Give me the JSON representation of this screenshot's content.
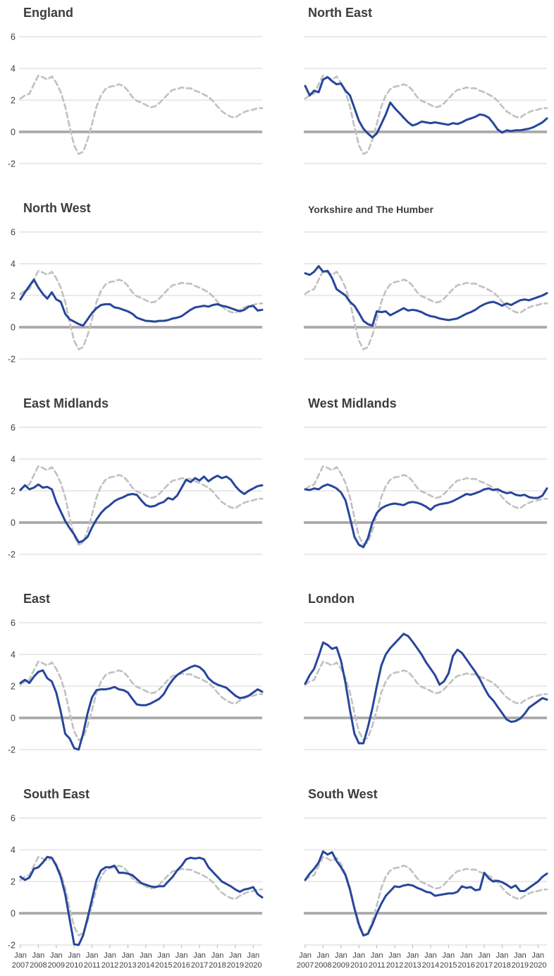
{
  "chart_data": {
    "type": "line",
    "layout": "small multiples, 2 columns x 5 rows, no legend, gridlines on, heavy zero line",
    "x": {
      "start": "Jan 2007",
      "end": "Jul 2020",
      "step_months": 3,
      "points": 55
    },
    "x_axis": {
      "tick_month": "Jan",
      "tick_years": [
        "2007",
        "2008",
        "2009",
        "2010",
        "2011",
        "2012",
        "2013",
        "2014",
        "2015",
        "2016",
        "2017",
        "2018",
        "2019",
        "2020"
      ],
      "shown_on": "bottom row only"
    },
    "y_axis": {
      "ticks": [
        "6",
        "4",
        "2",
        "0",
        "-2"
      ],
      "range": [
        -2,
        6
      ],
      "shown_on": "left column only",
      "zero_line": true
    },
    "colors": {
      "region_line": "#27469b",
      "england_reference_line": "#c2c2c2",
      "gridline": "#d4d4d4",
      "zero_line": "#a9a9a9",
      "axis_tick": "#b3b3b3",
      "tick_text": "#3f3f3f",
      "title_text": "#3d3d3d"
    },
    "series": [
      {
        "name": "England",
        "role": "reference",
        "style": "dashed",
        "values": [
          2.1,
          2.3,
          2.4,
          3.0,
          3.55,
          3.45,
          3.3,
          3.5,
          3.1,
          2.5,
          1.6,
          0.3,
          -0.85,
          -1.4,
          -1.25,
          -0.5,
          0.5,
          1.6,
          2.3,
          2.7,
          2.85,
          2.9,
          3.0,
          2.9,
          2.6,
          2.2,
          1.95,
          1.85,
          1.7,
          1.55,
          1.6,
          1.8,
          2.1,
          2.4,
          2.65,
          2.7,
          2.8,
          2.75,
          2.75,
          2.6,
          2.5,
          2.35,
          2.2,
          1.95,
          1.6,
          1.3,
          1.1,
          0.95,
          0.9,
          1.1,
          1.25,
          1.35,
          1.4,
          1.5,
          1.5
        ]
      },
      {
        "name": "North East",
        "role": "region",
        "style": "solid",
        "values": [
          2.9,
          2.3,
          2.6,
          2.5,
          3.3,
          3.45,
          3.2,
          3.0,
          3.05,
          2.6,
          2.3,
          1.5,
          0.7,
          0.2,
          -0.1,
          -0.35,
          -0.1,
          0.5,
          1.1,
          1.85,
          1.5,
          1.2,
          0.9,
          0.6,
          0.4,
          0.5,
          0.65,
          0.6,
          0.55,
          0.6,
          0.55,
          0.5,
          0.45,
          0.55,
          0.5,
          0.6,
          0.75,
          0.85,
          0.95,
          1.1,
          1.05,
          0.9,
          0.55,
          0.15,
          -0.05,
          0.1,
          0.05,
          0.1,
          0.1,
          0.15,
          0.2,
          0.3,
          0.45,
          0.6,
          0.85
        ]
      },
      {
        "name": "North West",
        "role": "region",
        "style": "solid",
        "values": [
          1.75,
          2.2,
          2.6,
          3.0,
          2.5,
          2.1,
          1.8,
          2.2,
          1.75,
          1.6,
          0.85,
          0.5,
          0.35,
          0.2,
          0.1,
          0.5,
          0.9,
          1.2,
          1.4,
          1.45,
          1.45,
          1.25,
          1.2,
          1.1,
          1.0,
          0.85,
          0.6,
          0.5,
          0.4,
          0.38,
          0.35,
          0.4,
          0.4,
          0.45,
          0.55,
          0.6,
          0.7,
          0.9,
          1.1,
          1.25,
          1.3,
          1.35,
          1.3,
          1.4,
          1.45,
          1.35,
          1.3,
          1.2,
          1.1,
          1.0,
          1.1,
          1.3,
          1.35,
          1.05,
          1.1
        ]
      },
      {
        "name": "Yorkshire and The Humber",
        "role": "region",
        "style": "solid",
        "values": [
          3.4,
          3.3,
          3.5,
          3.85,
          3.5,
          3.55,
          3.1,
          2.4,
          2.2,
          2.0,
          1.6,
          1.35,
          0.9,
          0.4,
          0.2,
          0.1,
          1.0,
          0.95,
          1.0,
          0.75,
          0.9,
          1.05,
          1.2,
          1.05,
          1.1,
          1.05,
          0.95,
          0.8,
          0.7,
          0.65,
          0.55,
          0.5,
          0.45,
          0.5,
          0.55,
          0.7,
          0.85,
          0.95,
          1.1,
          1.3,
          1.45,
          1.55,
          1.6,
          1.5,
          1.35,
          1.5,
          1.4,
          1.55,
          1.7,
          1.75,
          1.7,
          1.8,
          1.9,
          2.0,
          2.15
        ]
      },
      {
        "name": "East Midlands",
        "role": "region",
        "style": "solid",
        "values": [
          2.05,
          2.35,
          2.1,
          2.2,
          2.4,
          2.2,
          2.25,
          2.1,
          1.3,
          0.7,
          0.1,
          -0.35,
          -0.75,
          -1.25,
          -1.15,
          -0.9,
          -0.3,
          0.2,
          0.6,
          0.9,
          1.1,
          1.35,
          1.5,
          1.6,
          1.75,
          1.8,
          1.75,
          1.4,
          1.1,
          1.0,
          1.05,
          1.2,
          1.3,
          1.55,
          1.45,
          1.7,
          2.2,
          2.7,
          2.55,
          2.8,
          2.65,
          2.9,
          2.6,
          2.8,
          2.95,
          2.8,
          2.9,
          2.7,
          2.3,
          2.0,
          1.8,
          2.0,
          2.15,
          2.3,
          2.35
        ]
      },
      {
        "name": "West Midlands",
        "role": "region",
        "style": "solid",
        "values": [
          2.1,
          2.05,
          2.15,
          2.1,
          2.3,
          2.4,
          2.3,
          2.15,
          1.9,
          1.4,
          0.3,
          -0.9,
          -1.4,
          -1.55,
          -1.0,
          0.0,
          0.6,
          0.9,
          1.05,
          1.15,
          1.2,
          1.15,
          1.1,
          1.25,
          1.3,
          1.25,
          1.15,
          1.0,
          0.8,
          1.05,
          1.15,
          1.2,
          1.25,
          1.35,
          1.5,
          1.65,
          1.8,
          1.75,
          1.85,
          1.95,
          2.1,
          2.15,
          2.05,
          2.1,
          1.95,
          1.85,
          1.9,
          1.75,
          1.7,
          1.75,
          1.6,
          1.55,
          1.55,
          1.7,
          2.15
        ]
      },
      {
        "name": "East",
        "role": "region",
        "style": "solid",
        "values": [
          2.2,
          2.4,
          2.2,
          2.6,
          2.9,
          3.0,
          2.5,
          2.3,
          1.6,
          0.4,
          -1.0,
          -1.3,
          -1.9,
          -2.0,
          -1.0,
          0.3,
          1.3,
          1.75,
          1.8,
          1.8,
          1.85,
          1.95,
          1.8,
          1.75,
          1.6,
          1.2,
          0.85,
          0.8,
          0.8,
          0.9,
          1.05,
          1.2,
          1.5,
          2.0,
          2.4,
          2.7,
          2.9,
          3.05,
          3.2,
          3.3,
          3.2,
          2.95,
          2.5,
          2.25,
          2.1,
          2.0,
          1.9,
          1.65,
          1.4,
          1.25,
          1.3,
          1.4,
          1.6,
          1.8,
          1.65
        ]
      },
      {
        "name": "London",
        "role": "region",
        "style": "solid",
        "values": [
          2.15,
          2.7,
          3.1,
          3.9,
          4.75,
          4.6,
          4.35,
          4.45,
          3.6,
          2.2,
          0.5,
          -1.0,
          -1.6,
          -1.6,
          -0.6,
          0.6,
          2.0,
          3.3,
          4.0,
          4.4,
          4.7,
          5.0,
          5.3,
          5.15,
          4.8,
          4.4,
          4.0,
          3.5,
          3.1,
          2.7,
          2.1,
          2.3,
          2.8,
          3.9,
          4.3,
          4.1,
          3.7,
          3.3,
          2.9,
          2.45,
          1.9,
          1.4,
          1.1,
          0.7,
          0.3,
          -0.1,
          -0.25,
          -0.2,
          -0.05,
          0.25,
          0.65,
          0.85,
          1.05,
          1.25,
          1.15
        ]
      },
      {
        "name": "South East",
        "role": "region",
        "style": "solid",
        "values": [
          2.3,
          2.1,
          2.25,
          2.8,
          2.9,
          3.2,
          3.55,
          3.5,
          3.0,
          2.3,
          1.2,
          -0.4,
          -1.95,
          -2.0,
          -1.4,
          -0.3,
          0.9,
          2.1,
          2.7,
          2.9,
          2.9,
          3.0,
          2.55,
          2.55,
          2.5,
          2.4,
          2.15,
          1.9,
          1.8,
          1.7,
          1.65,
          1.7,
          1.7,
          2.0,
          2.3,
          2.7,
          3.0,
          3.4,
          3.5,
          3.45,
          3.5,
          3.4,
          2.9,
          2.6,
          2.3,
          2.0,
          1.85,
          1.7,
          1.5,
          1.35,
          1.5,
          1.55,
          1.65,
          1.2,
          1.0
        ]
      },
      {
        "name": "South West",
        "role": "region",
        "style": "solid",
        "values": [
          2.1,
          2.5,
          2.8,
          3.2,
          3.9,
          3.7,
          3.85,
          3.3,
          2.9,
          2.4,
          1.5,
          0.3,
          -0.7,
          -1.4,
          -1.3,
          -0.7,
          0.0,
          0.6,
          1.1,
          1.4,
          1.7,
          1.65,
          1.75,
          1.8,
          1.75,
          1.6,
          1.5,
          1.35,
          1.3,
          1.1,
          1.15,
          1.2,
          1.25,
          1.25,
          1.35,
          1.7,
          1.6,
          1.65,
          1.45,
          1.5,
          2.55,
          2.2,
          2.0,
          2.05,
          1.95,
          1.8,
          1.6,
          1.75,
          1.4,
          1.4,
          1.6,
          1.8,
          2.0,
          2.3,
          2.5
        ]
      }
    ],
    "panels": [
      {
        "title": "England",
        "series": [
          "England"
        ]
      },
      {
        "title": "North East",
        "series": [
          "England",
          "North East"
        ]
      },
      {
        "title": "North West",
        "series": [
          "England",
          "North West"
        ]
      },
      {
        "title": "Yorkshire and The Humber",
        "series": [
          "England",
          "Yorkshire and The Humber"
        ]
      },
      {
        "title": "East Midlands",
        "series": [
          "England",
          "East Midlands"
        ]
      },
      {
        "title": "West Midlands",
        "series": [
          "England",
          "West Midlands"
        ]
      },
      {
        "title": "East",
        "series": [
          "England",
          "East"
        ]
      },
      {
        "title": "London",
        "series": [
          "England",
          "London"
        ]
      },
      {
        "title": "South East",
        "series": [
          "England",
          "South East"
        ]
      },
      {
        "title": "South West",
        "series": [
          "England",
          "South West"
        ]
      }
    ]
  }
}
